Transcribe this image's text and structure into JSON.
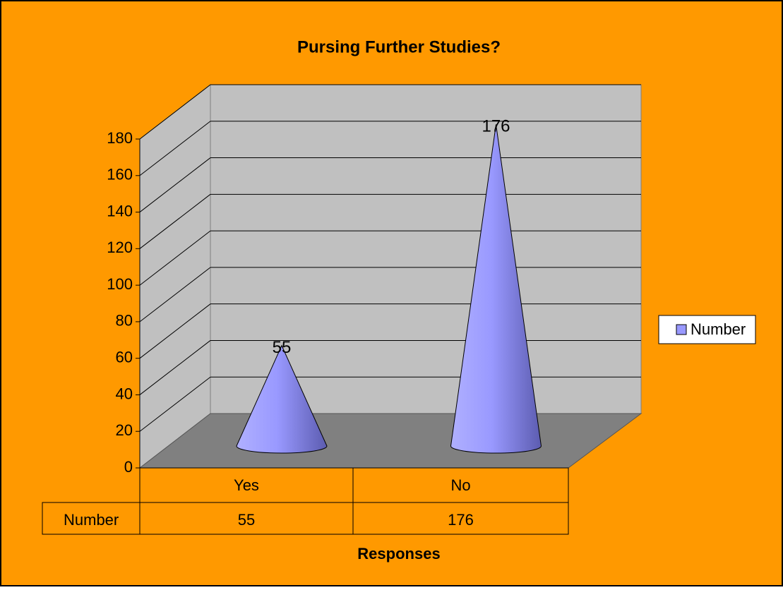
{
  "chart_data": {
    "type": "cone3d",
    "title": "Pursing Further Studies?",
    "x_label": "Responses",
    "categories": [
      "Yes",
      "No"
    ],
    "series": [
      {
        "name": "Number",
        "color": "#9999FF",
        "values": [
          55,
          176
        ]
      }
    ],
    "ylim": [
      0,
      180
    ],
    "yticks": [
      0,
      20,
      40,
      60,
      80,
      100,
      120,
      140,
      160,
      180
    ],
    "grid": true,
    "legend": "right",
    "data_table": true
  }
}
